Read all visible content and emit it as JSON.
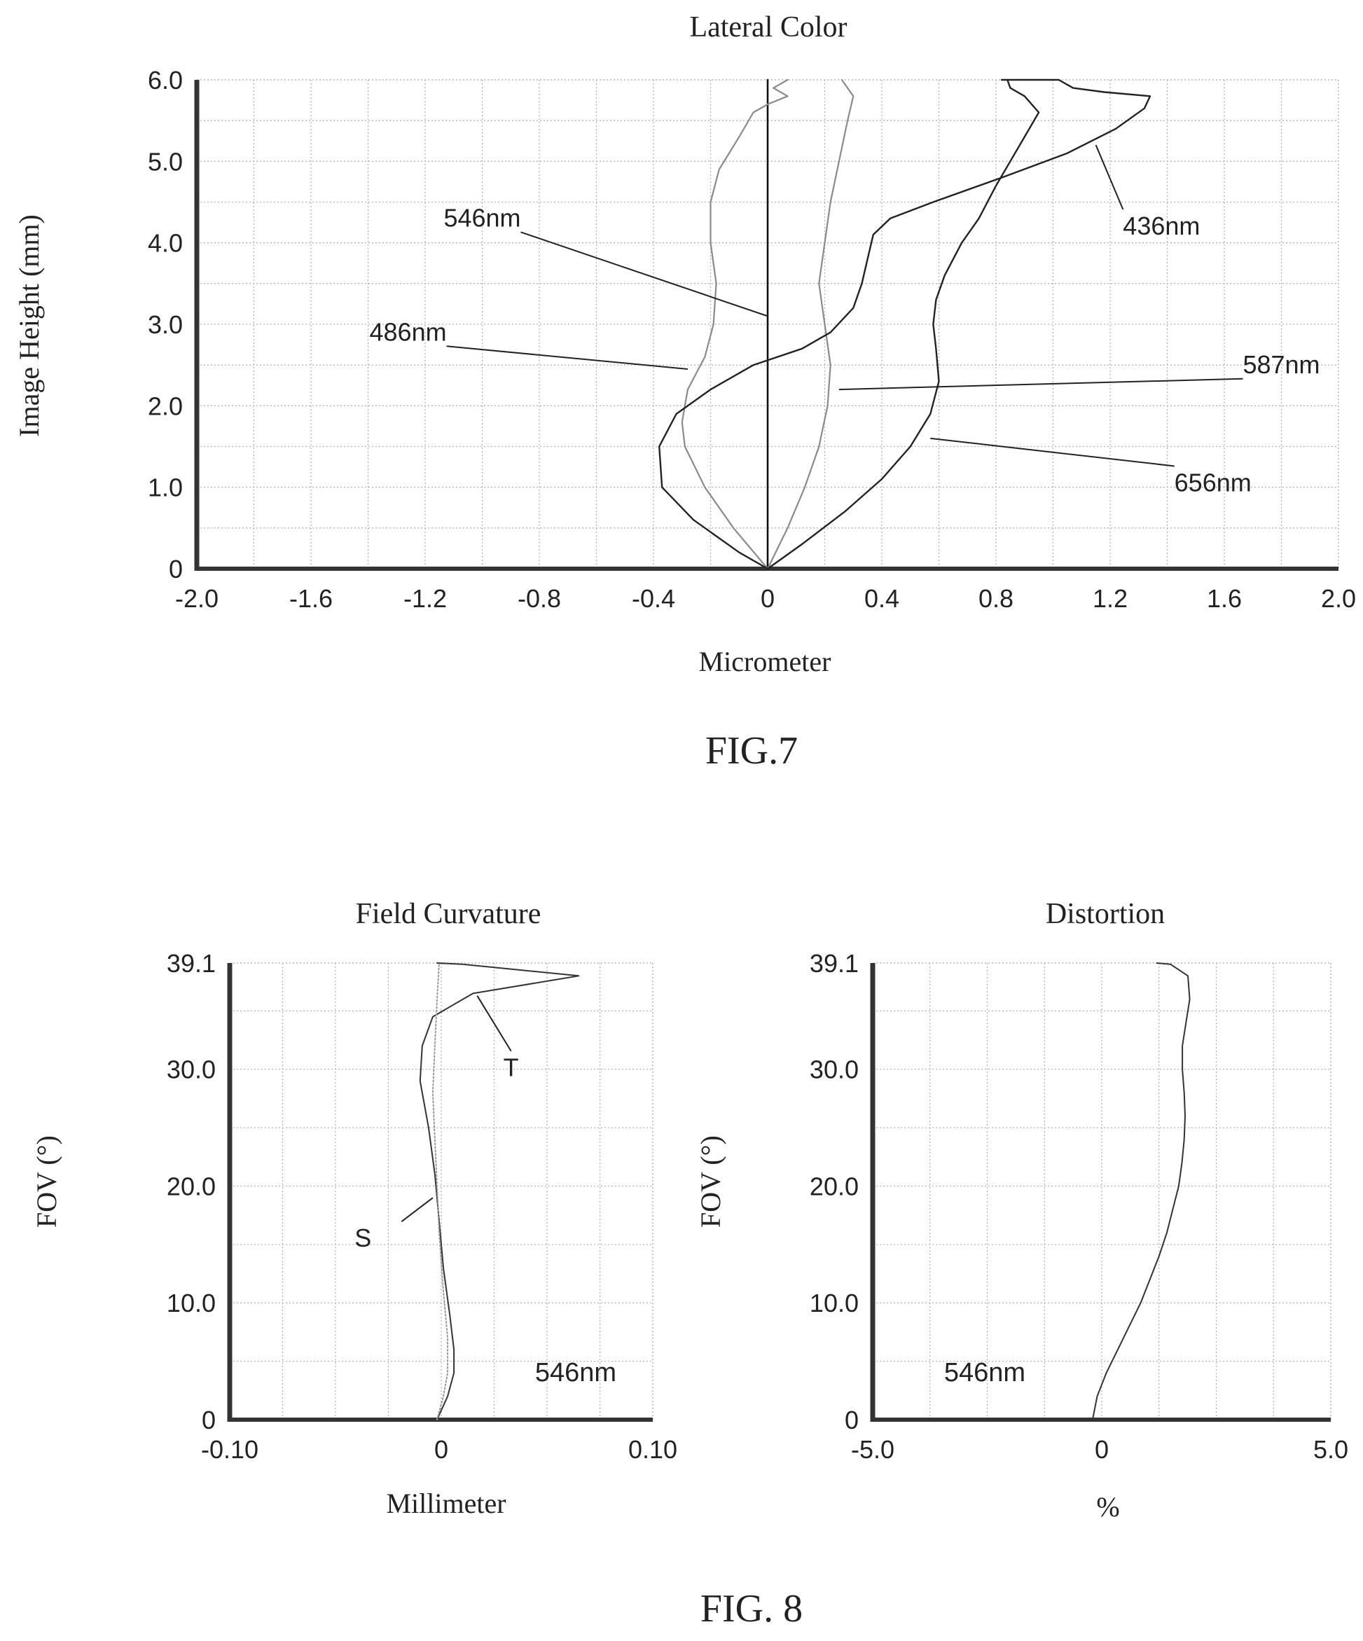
{
  "chart_data": [
    {
      "id": "lateral",
      "type": "line",
      "title": "Lateral Color",
      "xlabel": "Micrometer",
      "ylabel": "Image Height (mm)",
      "xlim": [
        -2.0,
        2.0
      ],
      "ylim": [
        0,
        6.0
      ],
      "x_ticks": [
        -2.0,
        -1.6,
        -1.2,
        -0.8,
        -0.4,
        0,
        0.4,
        0.8,
        1.2,
        1.6,
        2.0
      ],
      "x_tick_labels": [
        "-2.0",
        "-1.6",
        "-1.2",
        "-0.8",
        "-0.4",
        "0",
        "0.4",
        "0.8",
        "1.2",
        "1.6",
        "2.0"
      ],
      "y_ticks": [
        0,
        1.0,
        2.0,
        3.0,
        4.0,
        5.0,
        6.0
      ],
      "y_tick_labels": [
        "0",
        "1.0",
        "2.0",
        "3.0",
        "4.0",
        "5.0",
        "6.0"
      ],
      "grid": true,
      "caption": "FIG.7",
      "series": [
        {
          "name": "546nm",
          "color": "#111111",
          "width": 2.6,
          "points": [
            [
              0,
              0
            ],
            [
              0,
              6.0
            ]
          ]
        },
        {
          "name": "486nm",
          "color": "#8a8a8a",
          "width": 2.2,
          "points": [
            [
              0,
              0
            ],
            [
              -0.12,
              0.5
            ],
            [
              -0.22,
              1.0
            ],
            [
              -0.29,
              1.5
            ],
            [
              -0.3,
              1.8
            ],
            [
              -0.28,
              2.2
            ],
            [
              -0.22,
              2.6
            ],
            [
              -0.19,
              3.0
            ],
            [
              -0.18,
              3.5
            ],
            [
              -0.2,
              4.0
            ],
            [
              -0.2,
              4.5
            ],
            [
              -0.17,
              4.9
            ],
            [
              -0.1,
              5.3
            ],
            [
              -0.05,
              5.6
            ],
            [
              0,
              5.7
            ],
            [
              0.07,
              5.8
            ],
            [
              0.02,
              5.9
            ],
            [
              0.07,
              6.0
            ]
          ]
        },
        {
          "name": "587nm",
          "color": "#8a8a8a",
          "width": 2.2,
          "points": [
            [
              0,
              0
            ],
            [
              0.07,
              0.5
            ],
            [
              0.13,
              1.0
            ],
            [
              0.18,
              1.5
            ],
            [
              0.21,
              2.0
            ],
            [
              0.22,
              2.5
            ],
            [
              0.2,
              3.0
            ],
            [
              0.18,
              3.5
            ],
            [
              0.2,
              4.0
            ],
            [
              0.22,
              4.5
            ],
            [
              0.25,
              5.0
            ],
            [
              0.28,
              5.5
            ],
            [
              0.3,
              5.8
            ],
            [
              0.26,
              6.0
            ]
          ]
        },
        {
          "name": "436nm",
          "color": "#222222",
          "width": 2.4,
          "points": [
            [
              0,
              0
            ],
            [
              -0.1,
              0.2
            ],
            [
              -0.26,
              0.6
            ],
            [
              -0.37,
              1.0
            ],
            [
              -0.38,
              1.5
            ],
            [
              -0.32,
              1.9
            ],
            [
              -0.2,
              2.2
            ],
            [
              -0.05,
              2.5
            ],
            [
              0.12,
              2.7
            ],
            [
              0.22,
              2.9
            ],
            [
              0.3,
              3.2
            ],
            [
              0.33,
              3.5
            ],
            [
              0.35,
              3.8
            ],
            [
              0.37,
              4.1
            ],
            [
              0.43,
              4.3
            ],
            [
              0.58,
              4.5
            ],
            [
              0.82,
              4.8
            ],
            [
              1.05,
              5.1
            ],
            [
              1.22,
              5.4
            ],
            [
              1.32,
              5.65
            ],
            [
              1.34,
              5.8
            ],
            [
              1.18,
              5.85
            ],
            [
              1.07,
              5.9
            ],
            [
              1.02,
              6.0
            ],
            [
              0.82,
              6.0
            ]
          ]
        },
        {
          "name": "656nm",
          "color": "#222222",
          "width": 2.4,
          "points": [
            [
              0,
              0
            ],
            [
              0.12,
              0.3
            ],
            [
              0.27,
              0.7
            ],
            [
              0.4,
              1.1
            ],
            [
              0.5,
              1.5
            ],
            [
              0.57,
              1.9
            ],
            [
              0.6,
              2.3
            ],
            [
              0.59,
              2.7
            ],
            [
              0.58,
              3.0
            ],
            [
              0.59,
              3.3
            ],
            [
              0.62,
              3.6
            ],
            [
              0.68,
              4.0
            ],
            [
              0.74,
              4.3
            ],
            [
              0.8,
              4.7
            ],
            [
              0.85,
              5.0
            ],
            [
              0.9,
              5.3
            ],
            [
              0.95,
              5.6
            ],
            [
              0.9,
              5.8
            ],
            [
              0.85,
              5.9
            ],
            [
              0.84,
              6.0
            ]
          ]
        }
      ],
      "annotations": [
        {
          "text": "546nm",
          "anchor": [
            0.0,
            3.1
          ],
          "label_at": [
            -1.0,
            4.2
          ]
        },
        {
          "text": "486nm",
          "anchor": [
            -0.28,
            2.45
          ],
          "label_at": [
            -1.26,
            2.8
          ]
        },
        {
          "text": "436nm",
          "anchor": [
            1.15,
            5.2
          ],
          "label_at": [
            1.38,
            4.1
          ]
        },
        {
          "text": "587nm",
          "anchor": [
            0.25,
            2.2
          ],
          "label_at": [
            1.8,
            2.4
          ]
        },
        {
          "text": "656nm",
          "anchor": [
            0.57,
            1.6
          ],
          "label_at": [
            1.56,
            0.95
          ]
        }
      ]
    },
    {
      "id": "field",
      "type": "line",
      "title": "Field Curvature",
      "xlabel": "Millimeter",
      "ylabel": "FOV (°)",
      "xlim": [
        -0.1,
        0.1
      ],
      "ylim": [
        0,
        39.1
      ],
      "x_ticks": [
        -0.1,
        0,
        0.1
      ],
      "x_tick_labels": [
        "-0.10",
        "0",
        "0.10"
      ],
      "y_ticks": [
        0,
        10,
        20,
        30,
        39.1
      ],
      "y_tick_labels": [
        "0",
        "10.0",
        "20.0",
        "30.0",
        "39.1"
      ],
      "grid": true,
      "wavelength_label": "546nm",
      "series": [
        {
          "name": "T",
          "color": "#333333",
          "width": 2.0,
          "points": [
            [
              -0.002,
              0
            ],
            [
              0.003,
              2
            ],
            [
              0.006,
              4
            ],
            [
              0.006,
              6
            ],
            [
              0.004,
              9
            ],
            [
              0.001,
              13
            ],
            [
              -0.001,
              17
            ],
            [
              -0.003,
              21
            ],
            [
              -0.006,
              25
            ],
            [
              -0.01,
              29
            ],
            [
              -0.009,
              32
            ],
            [
              -0.004,
              34.5
            ],
            [
              0.015,
              36.5
            ],
            [
              0.065,
              38.0
            ],
            [
              0.01,
              39.0
            ],
            [
              -0.002,
              39.1
            ]
          ]
        },
        {
          "name": "S",
          "color": "#999999",
          "width": 2.0,
          "dotted": true,
          "points": [
            [
              -0.002,
              0
            ],
            [
              0.001,
              2
            ],
            [
              0.003,
              4
            ],
            [
              0.003,
              7
            ],
            [
              0.001,
              11
            ],
            [
              -0.001,
              16
            ],
            [
              -0.002,
              20
            ],
            [
              -0.003,
              24
            ],
            [
              -0.004,
              28
            ],
            [
              -0.003,
              32
            ],
            [
              -0.002,
              36
            ],
            [
              -0.001,
              39.1
            ]
          ]
        }
      ],
      "annotations": [
        {
          "text": "T",
          "anchor": [
            0.017,
            36.3
          ],
          "label_at": [
            0.033,
            29.4
          ]
        },
        {
          "text": "S",
          "anchor": [
            -0.004,
            19.0
          ],
          "label_at": [
            -0.037,
            14.8
          ]
        }
      ]
    },
    {
      "id": "distortion",
      "type": "line",
      "title": "Distortion",
      "xlabel": "%",
      "ylabel": "FOV (°)",
      "xlim": [
        -5.0,
        5.0
      ],
      "ylim": [
        0,
        39.1
      ],
      "x_ticks": [
        -5.0,
        0,
        5.0
      ],
      "x_tick_labels": [
        "-5.0",
        "0",
        "5.0"
      ],
      "y_ticks": [
        0,
        10,
        20,
        30,
        39.1
      ],
      "y_tick_labels": [
        "0",
        "10.0",
        "20.0",
        "30.0",
        "39.1"
      ],
      "grid": true,
      "wavelength_label": "546nm",
      "series": [
        {
          "name": "",
          "color": "#333333",
          "width": 2.0,
          "points": [
            [
              -0.2,
              0
            ],
            [
              -0.1,
              2
            ],
            [
              0.1,
              4
            ],
            [
              0.35,
              6
            ],
            [
              0.6,
              8
            ],
            [
              0.85,
              10
            ],
            [
              1.05,
              12
            ],
            [
              1.25,
              14
            ],
            [
              1.42,
              16
            ],
            [
              1.55,
              18
            ],
            [
              1.68,
              20
            ],
            [
              1.75,
              22
            ],
            [
              1.8,
              24
            ],
            [
              1.82,
              26
            ],
            [
              1.8,
              28
            ],
            [
              1.76,
              30
            ],
            [
              1.76,
              32
            ],
            [
              1.84,
              34
            ],
            [
              1.92,
              36
            ],
            [
              1.88,
              38
            ],
            [
              1.5,
              39
            ],
            [
              1.2,
              39.1
            ]
          ]
        }
      ]
    }
  ],
  "captions": {
    "fig7": "FIG.7",
    "fig8": "FIG. 8"
  }
}
